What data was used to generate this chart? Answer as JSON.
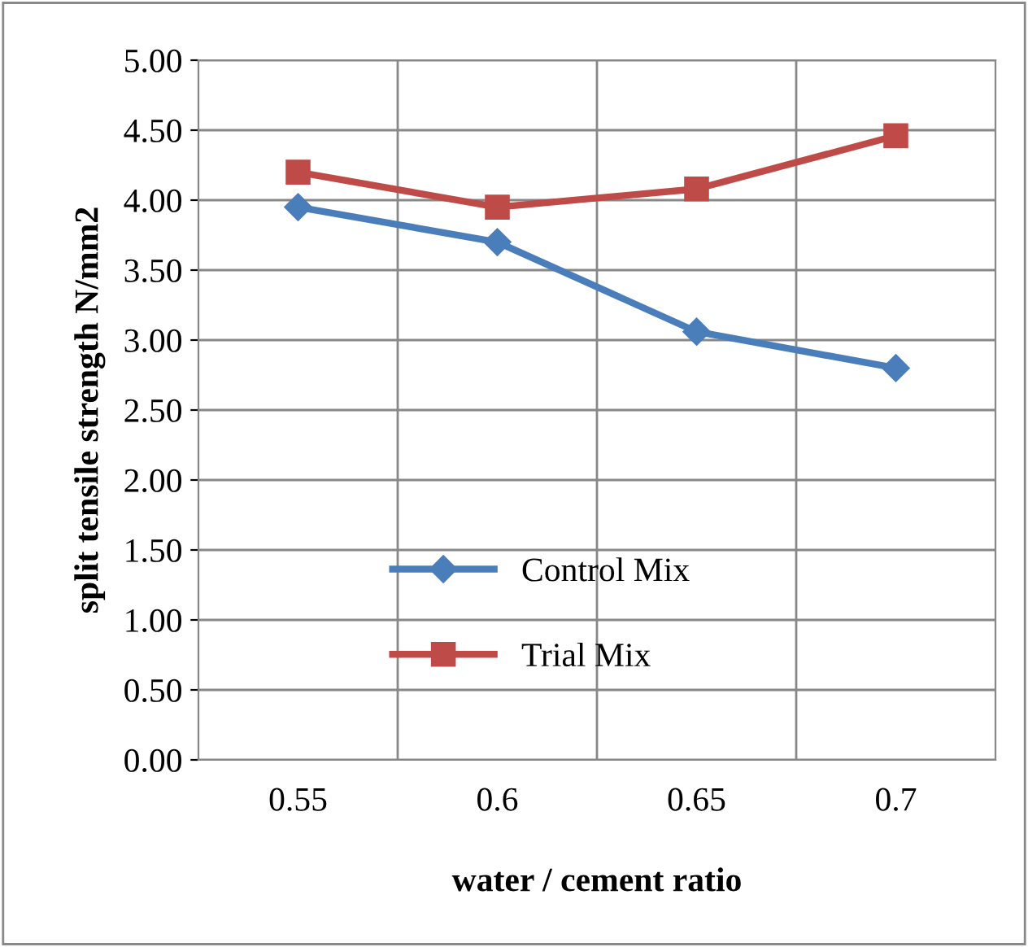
{
  "chart_data": {
    "type": "line",
    "xlabel": "water / cement ratio",
    "ylabel": "split tensile strength N/mm2",
    "categories": [
      "0.55",
      "0.6",
      "0.65",
      "0.7"
    ],
    "series": [
      {
        "name": "Control Mix",
        "color": "#4a7ebb",
        "marker": "diamond",
        "values": [
          3.95,
          3.7,
          3.06,
          2.8
        ]
      },
      {
        "name": "Trial Mix",
        "color": "#be4b48",
        "marker": "square",
        "values": [
          4.2,
          3.95,
          4.08,
          4.46
        ]
      }
    ],
    "ylim": [
      0,
      5
    ],
    "yticks": [
      {
        "value": 0,
        "label": "0.00"
      },
      {
        "value": 0.5,
        "label": "0.50"
      },
      {
        "value": 1,
        "label": "1.00"
      },
      {
        "value": 1.5,
        "label": "1.50"
      },
      {
        "value": 2,
        "label": "2.00"
      },
      {
        "value": 2.5,
        "label": "2.50"
      },
      {
        "value": 3,
        "label": "3.00"
      },
      {
        "value": 3.5,
        "label": "3.50"
      },
      {
        "value": 4,
        "label": "4.00"
      },
      {
        "value": 4.5,
        "label": "4.50"
      },
      {
        "value": 5,
        "label": "5.00"
      }
    ],
    "grid": true,
    "legend": "bottom",
    "line_style": "solid"
  }
}
